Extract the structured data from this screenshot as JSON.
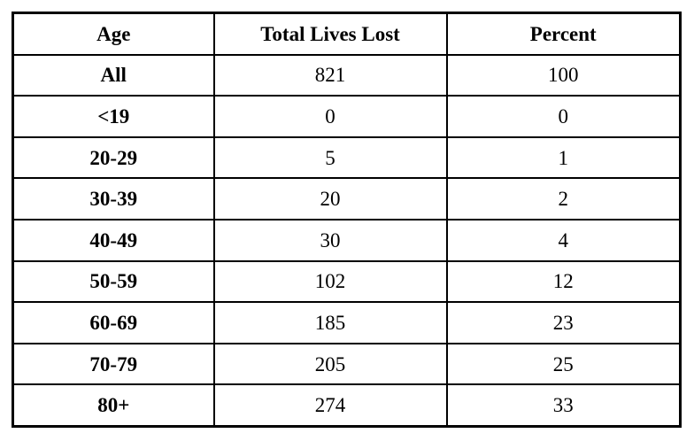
{
  "table": {
    "columns": [
      {
        "label": "Age"
      },
      {
        "label": "Total Lives Lost"
      },
      {
        "label": "Percent"
      }
    ],
    "rows": [
      {
        "age": "All",
        "total": "821",
        "percent": "100"
      },
      {
        "age": "<19",
        "total": "0",
        "percent": "0"
      },
      {
        "age": "20-29",
        "total": "5",
        "percent": "1"
      },
      {
        "age": "30-39",
        "total": "20",
        "percent": "2"
      },
      {
        "age": "40-49",
        "total": "30",
        "percent": "4"
      },
      {
        "age": "50-59",
        "total": "102",
        "percent": "12"
      },
      {
        "age": "60-69",
        "total": "185",
        "percent": "23"
      },
      {
        "age": "70-79",
        "total": "205",
        "percent": "25"
      },
      {
        "age": "80+",
        "total": "274",
        "percent": "33"
      }
    ]
  },
  "chart_data": {
    "type": "table",
    "columns": [
      "Age",
      "Total Lives Lost",
      "Percent"
    ],
    "rows": [
      [
        "All",
        821,
        100
      ],
      [
        "<19",
        0,
        0
      ],
      [
        "20-29",
        5,
        1
      ],
      [
        "30-39",
        20,
        2
      ],
      [
        "40-49",
        30,
        4
      ],
      [
        "50-59",
        102,
        12
      ],
      [
        "60-69",
        185,
        23
      ],
      [
        "70-79",
        205,
        25
      ],
      [
        "80+",
        274,
        33
      ]
    ]
  },
  "colors": {
    "border": "#000000",
    "text": "#000000",
    "background": "#ffffff"
  }
}
